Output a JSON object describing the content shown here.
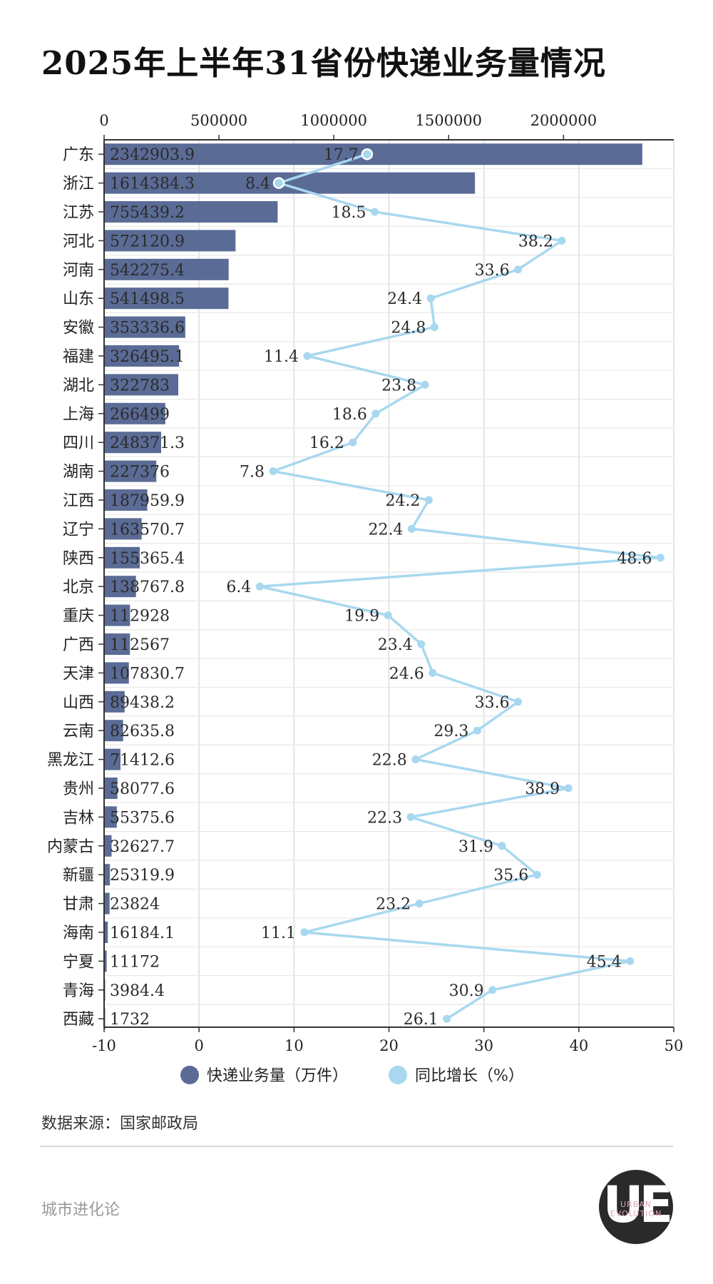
{
  "title": "2025年上半年31省份快递业务量情况",
  "source": "数据来源：国家邮政局",
  "brand": "城市进化论",
  "logo": {
    "mark": "UE",
    "text_line1": "URBAN",
    "text_line2": "EVOLUTION"
  },
  "colors": {
    "bar": "#5a6b95",
    "line": "#a8d8ef",
    "axis": "#333333",
    "grid": "#dddddd"
  },
  "chart_data": {
    "type": "bar",
    "categories": [
      "广东",
      "浙江",
      "江苏",
      "河北",
      "河南",
      "山东",
      "安徽",
      "福建",
      "湖北",
      "上海",
      "四川",
      "湖南",
      "江西",
      "辽宁",
      "陕西",
      "北京",
      "重庆",
      "广西",
      "天津",
      "山西",
      "云南",
      "黑龙江",
      "贵州",
      "吉林",
      "内蒙古",
      "新疆",
      "甘肃",
      "海南",
      "宁夏",
      "青海",
      "西藏"
    ],
    "bar_labels": [
      "2342903.9",
      "1614384.3",
      "755439.2",
      "572120.9",
      "542275.4",
      "541498.5",
      "353336.6",
      "326495.1",
      "322783",
      "266499",
      "248371.3",
      "227376",
      "187959.9",
      "163570.7",
      "155365.4",
      "138767.8",
      "112928",
      "112567",
      "107830.7",
      "89438.2",
      "82635.8",
      "71412.6",
      "58077.6",
      "55375.6",
      "32627.7",
      "25319.9",
      "23824",
      "16184.1",
      "11172",
      "3984.4",
      "1732"
    ],
    "line_labels": [
      "17.7",
      "8.4",
      "18.5",
      "38.2",
      "33.6",
      "24.4",
      "24.8",
      "11.4",
      "23.8",
      "18.6",
      "16.2",
      "7.8",
      "24.2",
      "22.4",
      "48.6",
      "6.4",
      "19.9",
      "23.4",
      "24.6",
      "33.6",
      "29.3",
      "22.8",
      "38.9",
      "22.3",
      "31.9",
      "35.6",
      "23.2",
      "11.1",
      "45.4",
      "30.9",
      "26.1"
    ],
    "series": [
      {
        "name": "快递业务量（万件）",
        "type": "bar",
        "axis": "top",
        "values": [
          2342903.9,
          1614384.3,
          755439.2,
          572120.9,
          542275.4,
          541498.5,
          353336.6,
          326495.1,
          322783,
          266499,
          248371.3,
          227376,
          187959.9,
          163570.7,
          155365.4,
          138767.8,
          112928,
          112567,
          107830.7,
          89438.2,
          82635.8,
          71412.6,
          58077.6,
          55375.6,
          32627.7,
          25319.9,
          23824,
          16184.1,
          11172,
          3984.4,
          1732
        ]
      },
      {
        "name": "同比增长（%）",
        "type": "line",
        "axis": "bottom",
        "values": [
          17.7,
          8.4,
          18.5,
          38.2,
          33.6,
          24.4,
          24.8,
          11.4,
          23.8,
          18.6,
          16.2,
          7.8,
          24.2,
          22.4,
          48.6,
          6.4,
          19.9,
          23.4,
          24.6,
          33.6,
          29.3,
          22.8,
          38.9,
          22.3,
          31.9,
          35.6,
          23.2,
          11.1,
          45.4,
          30.9,
          26.1
        ]
      }
    ],
    "top_axis": {
      "range": [
        0,
        2480000
      ],
      "ticks": [
        0,
        500000,
        1000000,
        1500000,
        2000000
      ],
      "tick_labels": [
        "0",
        "500000",
        "1000000",
        "1500000",
        "2000000"
      ]
    },
    "bottom_axis": {
      "range": [
        -10,
        50
      ],
      "ticks": [
        -10,
        0,
        10,
        20,
        30,
        40,
        50
      ],
      "tick_labels": [
        "-10",
        "0",
        "10",
        "20",
        "30",
        "40",
        "50"
      ]
    },
    "grid": true,
    "legend_position": "bottom"
  }
}
